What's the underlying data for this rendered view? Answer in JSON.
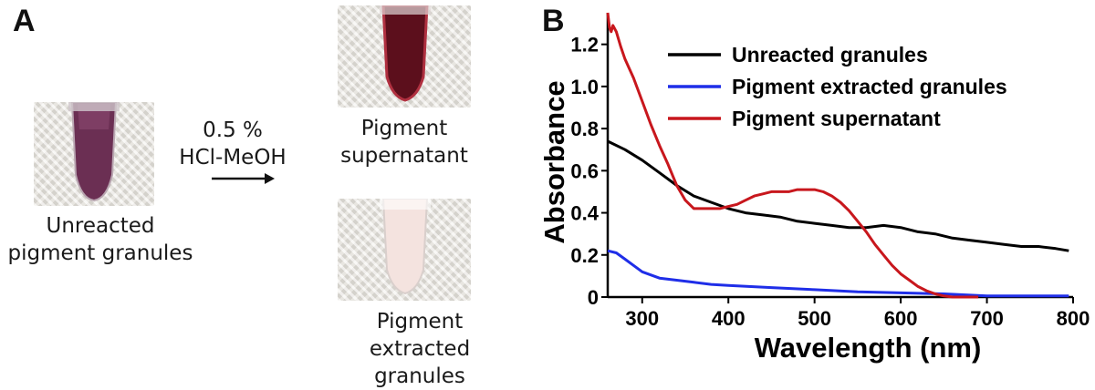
{
  "panel_a": {
    "label": "A",
    "left_caption": [
      "Unreacted",
      "pigment granules"
    ],
    "reagent_line1": "0.5 %",
    "reagent_line2": "HCl-MeOH",
    "top_right_caption": [
      "Pigment",
      "supernatant"
    ],
    "bottom_right_caption": [
      "Pigment",
      "extracted granules"
    ]
  },
  "panel_b": {
    "label": "B"
  },
  "chart_data": {
    "type": "line",
    "title": "",
    "xlabel": "Wavelength (nm)",
    "ylabel": "Absorbance",
    "xlim": [
      260,
      800
    ],
    "ylim": [
      0,
      1.35
    ],
    "xticks": [
      300,
      400,
      500,
      600,
      700,
      800
    ],
    "yticks": [
      0,
      0.2,
      0.4,
      0.6,
      0.8,
      1.0,
      1.2
    ],
    "ytick_labels": [
      "0",
      "0.2",
      "0.4",
      "0.6",
      "0.8",
      "1.0",
      "1.2"
    ],
    "grid": false,
    "legend_position": "top-right",
    "series": [
      {
        "name": "Unreacted granules",
        "color": "#000000",
        "x": [
          260,
          280,
          300,
          320,
          340,
          360,
          380,
          400,
          420,
          440,
          460,
          480,
          500,
          520,
          540,
          560,
          580,
          600,
          620,
          640,
          660,
          680,
          700,
          720,
          740,
          760,
          780,
          795
        ],
        "y": [
          0.74,
          0.7,
          0.65,
          0.59,
          0.53,
          0.48,
          0.45,
          0.42,
          0.4,
          0.39,
          0.38,
          0.36,
          0.35,
          0.34,
          0.33,
          0.33,
          0.34,
          0.33,
          0.31,
          0.3,
          0.28,
          0.27,
          0.26,
          0.25,
          0.24,
          0.24,
          0.23,
          0.22
        ]
      },
      {
        "name": "Pigment extracted granules",
        "color": "#1f2ee8",
        "x": [
          260,
          270,
          280,
          290,
          300,
          320,
          340,
          360,
          380,
          400,
          450,
          500,
          550,
          600,
          650,
          700,
          750,
          795
        ],
        "y": [
          0.22,
          0.21,
          0.18,
          0.15,
          0.12,
          0.09,
          0.08,
          0.07,
          0.06,
          0.055,
          0.045,
          0.035,
          0.025,
          0.02,
          0.015,
          0.005,
          0.005,
          0.005
        ]
      },
      {
        "name": "Pigment supernatant",
        "color": "#c8171d",
        "x": [
          260,
          262,
          264,
          266,
          270,
          275,
          280,
          290,
          300,
          310,
          320,
          330,
          340,
          350,
          360,
          370,
          380,
          390,
          400,
          410,
          420,
          430,
          440,
          450,
          460,
          470,
          480,
          490,
          500,
          510,
          520,
          530,
          540,
          550,
          560,
          570,
          580,
          590,
          600,
          610,
          620,
          630,
          640,
          650,
          660,
          670,
          680,
          690
        ],
        "y": [
          1.35,
          1.28,
          1.26,
          1.29,
          1.26,
          1.19,
          1.13,
          1.04,
          0.93,
          0.82,
          0.72,
          0.63,
          0.53,
          0.46,
          0.42,
          0.42,
          0.42,
          0.42,
          0.43,
          0.44,
          0.46,
          0.48,
          0.49,
          0.5,
          0.5,
          0.5,
          0.51,
          0.51,
          0.51,
          0.5,
          0.48,
          0.45,
          0.41,
          0.36,
          0.31,
          0.25,
          0.2,
          0.15,
          0.11,
          0.08,
          0.05,
          0.03,
          0.015,
          0.005,
          0,
          0,
          0,
          0
        ]
      }
    ]
  }
}
